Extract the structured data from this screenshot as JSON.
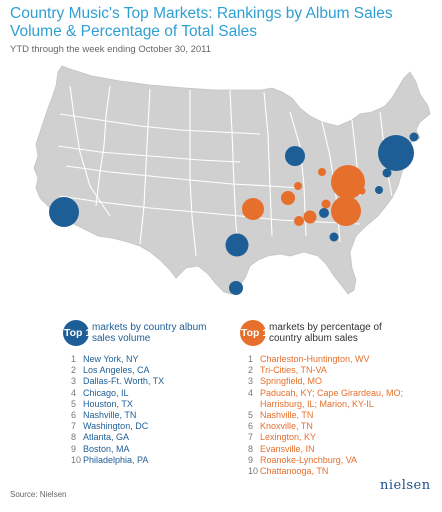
{
  "title": "Country Music's Top Markets: Rankings by Album Sales Volume & Percentage of Total Sales",
  "subtitle": "YTD through the week ending October 30, 2011",
  "colors": {
    "volume": "#1e5e96",
    "percent": "#e66f2c",
    "land": "#d0d0d0",
    "border": "#ffffff",
    "title": "#2f9fd3"
  },
  "legend_volume": {
    "badge": "Top 10",
    "heading": "markets by country album sales volume",
    "items": [
      {
        "rank": "1",
        "name": "New York, NY"
      },
      {
        "rank": "2",
        "name": "Los Angeles, CA"
      },
      {
        "rank": "3",
        "name": "Dallas-Ft. Worth, TX"
      },
      {
        "rank": "4",
        "name": "Chicago, IL"
      },
      {
        "rank": "5",
        "name": "Houston, TX"
      },
      {
        "rank": "6",
        "name": "Nashville, TN"
      },
      {
        "rank": "7",
        "name": "Washington, DC"
      },
      {
        "rank": "8",
        "name": "Atlanta, GA"
      },
      {
        "rank": "9",
        "name": "Boston, MA"
      },
      {
        "rank": "10",
        "name": "Philadelphia, PA"
      }
    ]
  },
  "legend_percent": {
    "badge": "Top 10",
    "heading": "markets by percentage of country album sales",
    "items": [
      {
        "rank": "1",
        "name": "Charleston-Huntington, WV"
      },
      {
        "rank": "2",
        "name": "Tri-Cities, TN-VA"
      },
      {
        "rank": "3",
        "name": "Springfield, MO"
      },
      {
        "rank": "4",
        "name": "Paducah, KY; Cape Girardeau, MO; Harrisburg, IL; Marion, KY-IL"
      },
      {
        "rank": "5",
        "name": "Nashville, TN"
      },
      {
        "rank": "6",
        "name": "Knoxville, TN"
      },
      {
        "rank": "7",
        "name": "Lexington, KY"
      },
      {
        "rank": "8",
        "name": "Evansville, IN"
      },
      {
        "rank": "9",
        "name": "Roanoke-Lynchburg, VA"
      },
      {
        "rank": "10",
        "name": "Chattanooga, TN"
      }
    ]
  },
  "source": "Source: Nielsen",
  "logo": "nielsen"
}
